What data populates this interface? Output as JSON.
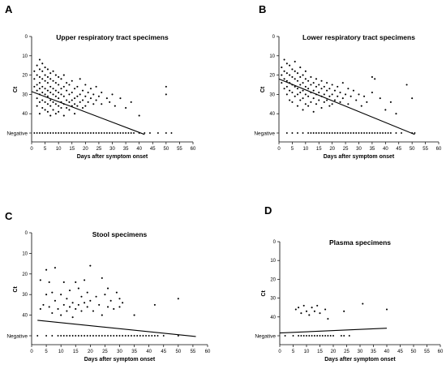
{
  "chart_data": [
    {
      "letter": "A",
      "type": "scatter",
      "title": "Upper respiratory tract specimens",
      "xlabel": "Days after symptom onset",
      "ylabel": "Ct",
      "xlim": [
        0,
        60
      ],
      "xticks": [
        0,
        5,
        10,
        15,
        20,
        25,
        30,
        35,
        40,
        45,
        50,
        55,
        60
      ],
      "yticks": [
        0,
        10,
        20,
        30,
        40
      ],
      "ycategory": "Negative",
      "trend": [
        [
          0,
          28.5
        ],
        [
          42,
          53
        ]
      ],
      "negatives": [
        1,
        2,
        3,
        4,
        5,
        6,
        7,
        8,
        9,
        10,
        11,
        12,
        13,
        14,
        15,
        16,
        17,
        18,
        19,
        20,
        21,
        22,
        23,
        24,
        25,
        26,
        27,
        28,
        29,
        30,
        31,
        32,
        33,
        34,
        35,
        36,
        37,
        38,
        40,
        42,
        44,
        47,
        50,
        52
      ],
      "points": [
        [
          1,
          18
        ],
        [
          1,
          22
        ],
        [
          1,
          26
        ],
        [
          2,
          15
        ],
        [
          2,
          20
        ],
        [
          2,
          25
        ],
        [
          2,
          28
        ],
        [
          2,
          32
        ],
        [
          2,
          36
        ],
        [
          3,
          12
        ],
        [
          3,
          17
        ],
        [
          3,
          21
        ],
        [
          3,
          24
        ],
        [
          3,
          27
        ],
        [
          3,
          30
        ],
        [
          3,
          34
        ],
        [
          3,
          40
        ],
        [
          4,
          14
        ],
        [
          4,
          18
        ],
        [
          4,
          22
        ],
        [
          4,
          26
        ],
        [
          4,
          29
        ],
        [
          4,
          33
        ],
        [
          4,
          37
        ],
        [
          5,
          16
        ],
        [
          5,
          20
        ],
        [
          5,
          23
        ],
        [
          5,
          27
        ],
        [
          5,
          30
        ],
        [
          5,
          34
        ],
        [
          5,
          38
        ],
        [
          6,
          17
        ],
        [
          6,
          21
        ],
        [
          6,
          24
        ],
        [
          6,
          28
        ],
        [
          6,
          31
        ],
        [
          6,
          35
        ],
        [
          6,
          39
        ],
        [
          7,
          19
        ],
        [
          7,
          22
        ],
        [
          7,
          26
        ],
        [
          7,
          29
        ],
        [
          7,
          33
        ],
        [
          7,
          36
        ],
        [
          7,
          41
        ],
        [
          8,
          18
        ],
        [
          8,
          23
        ],
        [
          8,
          27
        ],
        [
          8,
          30
        ],
        [
          8,
          34
        ],
        [
          8,
          38
        ],
        [
          9,
          20
        ],
        [
          9,
          24
        ],
        [
          9,
          28
        ],
        [
          9,
          31
        ],
        [
          9,
          35
        ],
        [
          9,
          40
        ],
        [
          10,
          21
        ],
        [
          10,
          25
        ],
        [
          10,
          29
        ],
        [
          10,
          32
        ],
        [
          10,
          36
        ],
        [
          10,
          39
        ],
        [
          11,
          22
        ],
        [
          11,
          27
        ],
        [
          11,
          30
        ],
        [
          11,
          34
        ],
        [
          11,
          37
        ],
        [
          12,
          20
        ],
        [
          12,
          26
        ],
        [
          12,
          31
        ],
        [
          12,
          35
        ],
        [
          12,
          41
        ],
        [
          13,
          24
        ],
        [
          13,
          28
        ],
        [
          13,
          33
        ],
        [
          13,
          37
        ],
        [
          14,
          25
        ],
        [
          14,
          30
        ],
        [
          14,
          34
        ],
        [
          14,
          38
        ],
        [
          15,
          23
        ],
        [
          15,
          29
        ],
        [
          15,
          33
        ],
        [
          15,
          36
        ],
        [
          16,
          27
        ],
        [
          16,
          32
        ],
        [
          16,
          35
        ],
        [
          16,
          40
        ],
        [
          17,
          26
        ],
        [
          17,
          31
        ],
        [
          17,
          36
        ],
        [
          18,
          22
        ],
        [
          18,
          30
        ],
        [
          18,
          34
        ],
        [
          19,
          28
        ],
        [
          19,
          33
        ],
        [
          19,
          37
        ],
        [
          20,
          25
        ],
        [
          20,
          31
        ],
        [
          20,
          36
        ],
        [
          21,
          29
        ],
        [
          21,
          34
        ],
        [
          22,
          27
        ],
        [
          22,
          32
        ],
        [
          23,
          30
        ],
        [
          23,
          35
        ],
        [
          24,
          26
        ],
        [
          24,
          33
        ],
        [
          25,
          31
        ],
        [
          26,
          29
        ],
        [
          26,
          35
        ],
        [
          28,
          32
        ],
        [
          29,
          34
        ],
        [
          30,
          30
        ],
        [
          31,
          36
        ],
        [
          33,
          32
        ],
        [
          35,
          37
        ],
        [
          37,
          34
        ],
        [
          40,
          41
        ],
        [
          50,
          26
        ],
        [
          50,
          30
        ]
      ]
    },
    {
      "letter": "B",
      "type": "scatter",
      "title": "Lower respiratory tract specimens",
      "xlabel": "Days after symptom onset",
      "ylabel": "Ct",
      "xlim": [
        0,
        60
      ],
      "xticks": [
        0,
        5,
        10,
        15,
        20,
        25,
        30,
        35,
        40,
        45,
        50,
        55,
        60
      ],
      "yticks": [
        0,
        10,
        20,
        30,
        40
      ],
      "ycategory": "Negative",
      "trend": [
        [
          0,
          22
        ],
        [
          51,
          53
        ]
      ],
      "negatives": [
        3,
        5,
        7,
        9,
        11,
        12,
        13,
        14,
        15,
        16,
        17,
        18,
        19,
        20,
        21,
        22,
        23,
        24,
        25,
        26,
        27,
        28,
        29,
        30,
        31,
        32,
        33,
        34,
        35,
        36,
        37,
        38,
        39,
        40,
        41,
        42,
        44,
        46,
        50,
        51
      ],
      "points": [
        [
          1,
          16
        ],
        [
          1,
          20
        ],
        [
          1,
          24
        ],
        [
          2,
          12
        ],
        [
          2,
          18
        ],
        [
          2,
          22
        ],
        [
          2,
          27
        ],
        [
          3,
          14
        ],
        [
          3,
          19
        ],
        [
          3,
          23
        ],
        [
          3,
          26
        ],
        [
          3,
          30
        ],
        [
          4,
          15
        ],
        [
          4,
          20
        ],
        [
          4,
          24
        ],
        [
          4,
          28
        ],
        [
          4,
          33
        ],
        [
          5,
          17
        ],
        [
          5,
          21
        ],
        [
          5,
          25
        ],
        [
          5,
          29
        ],
        [
          5,
          34
        ],
        [
          6,
          13
        ],
        [
          6,
          18
        ],
        [
          6,
          22
        ],
        [
          6,
          26
        ],
        [
          6,
          31
        ],
        [
          7,
          19
        ],
        [
          7,
          23
        ],
        [
          7,
          27
        ],
        [
          7,
          30
        ],
        [
          7,
          36
        ],
        [
          8,
          16
        ],
        [
          8,
          21
        ],
        [
          8,
          25
        ],
        [
          8,
          29
        ],
        [
          8,
          33
        ],
        [
          9,
          20
        ],
        [
          9,
          24
        ],
        [
          9,
          28
        ],
        [
          9,
          32
        ],
        [
          9,
          38
        ],
        [
          10,
          18
        ],
        [
          10,
          22
        ],
        [
          10,
          26
        ],
        [
          10,
          30
        ],
        [
          10,
          35
        ],
        [
          11,
          23
        ],
        [
          11,
          27
        ],
        [
          11,
          31
        ],
        [
          11,
          36
        ],
        [
          12,
          21
        ],
        [
          12,
          25
        ],
        [
          12,
          29
        ],
        [
          12,
          34
        ],
        [
          13,
          24
        ],
        [
          13,
          28
        ],
        [
          13,
          32
        ],
        [
          13,
          39
        ],
        [
          14,
          22
        ],
        [
          14,
          26
        ],
        [
          14,
          30
        ],
        [
          14,
          35
        ],
        [
          15,
          25
        ],
        [
          15,
          29
        ],
        [
          15,
          33
        ],
        [
          16,
          23
        ],
        [
          16,
          27
        ],
        [
          16,
          31
        ],
        [
          16,
          37
        ],
        [
          17,
          26
        ],
        [
          17,
          30
        ],
        [
          17,
          34
        ],
        [
          18,
          24
        ],
        [
          18,
          28
        ],
        [
          18,
          33
        ],
        [
          19,
          27
        ],
        [
          19,
          31
        ],
        [
          19,
          36
        ],
        [
          20,
          25
        ],
        [
          20,
          30
        ],
        [
          20,
          35
        ],
        [
          21,
          28
        ],
        [
          21,
          33
        ],
        [
          22,
          26
        ],
        [
          22,
          31
        ],
        [
          23,
          29
        ],
        [
          23,
          34
        ],
        [
          24,
          24
        ],
        [
          24,
          32
        ],
        [
          25,
          30
        ],
        [
          26,
          27
        ],
        [
          26,
          35
        ],
        [
          27,
          31
        ],
        [
          28,
          28
        ],
        [
          29,
          33
        ],
        [
          30,
          30
        ],
        [
          31,
          36
        ],
        [
          32,
          31
        ],
        [
          33,
          34
        ],
        [
          35,
          21
        ],
        [
          35,
          29
        ],
        [
          36,
          22
        ],
        [
          38,
          32
        ],
        [
          40,
          38
        ],
        [
          42,
          34
        ],
        [
          44,
          40
        ],
        [
          48,
          25
        ],
        [
          50,
          32
        ]
      ]
    },
    {
      "letter": "C",
      "type": "scatter",
      "title": "Stool specimens",
      "xlabel": "Days after symptom onset",
      "ylabel": "Ct",
      "xlim": [
        0,
        60
      ],
      "xticks": [
        0,
        5,
        10,
        15,
        20,
        25,
        30,
        35,
        40,
        45,
        50,
        55,
        60
      ],
      "yticks": [
        0,
        10,
        20,
        30,
        40
      ],
      "ycategory": "Negative",
      "trend": [
        [
          2,
          42.5
        ],
        [
          56,
          51.5
        ]
      ],
      "negatives": [
        2,
        5,
        7,
        9,
        10,
        11,
        12,
        13,
        14,
        15,
        16,
        17,
        18,
        19,
        20,
        21,
        22,
        23,
        24,
        25,
        26,
        27,
        28,
        29,
        30,
        31,
        32,
        33,
        34,
        35,
        36,
        37,
        38,
        39,
        40,
        41,
        42,
        43,
        45,
        50
      ],
      "points": [
        [
          3,
          23
        ],
        [
          3,
          37
        ],
        [
          4,
          35
        ],
        [
          5,
          18
        ],
        [
          5,
          30
        ],
        [
          6,
          24
        ],
        [
          6,
          36
        ],
        [
          7,
          29
        ],
        [
          7,
          39
        ],
        [
          8,
          17
        ],
        [
          8,
          33
        ],
        [
          9,
          37
        ],
        [
          10,
          30
        ],
        [
          10,
          40
        ],
        [
          11,
          24
        ],
        [
          11,
          35
        ],
        [
          12,
          32
        ],
        [
          12,
          38
        ],
        [
          13,
          28
        ],
        [
          13,
          36
        ],
        [
          14,
          34
        ],
        [
          14,
          41
        ],
        [
          15,
          24
        ],
        [
          15,
          37
        ],
        [
          16,
          27
        ],
        [
          16,
          35
        ],
        [
          17,
          31
        ],
        [
          17,
          38
        ],
        [
          18,
          23
        ],
        [
          18,
          34
        ],
        [
          19,
          29
        ],
        [
          19,
          36
        ],
        [
          20,
          16
        ],
        [
          20,
          33
        ],
        [
          21,
          38
        ],
        [
          22,
          31
        ],
        [
          23,
          35
        ],
        [
          24,
          22
        ],
        [
          24,
          40
        ],
        [
          25,
          30
        ],
        [
          26,
          27
        ],
        [
          26,
          36
        ],
        [
          27,
          33
        ],
        [
          28,
          37
        ],
        [
          29,
          29
        ],
        [
          30,
          32
        ],
        [
          30,
          36
        ],
        [
          31,
          34
        ],
        [
          35,
          40
        ],
        [
          42,
          35
        ],
        [
          50,
          32
        ]
      ]
    },
    {
      "letter": "D",
      "type": "scatter",
      "title": "Plasma specimens",
      "xlabel": "Days after symptom onset",
      "ylabel": "Ct",
      "xlim": [
        0,
        60
      ],
      "xticks": [
        0,
        5,
        10,
        15,
        20,
        25,
        30,
        35,
        40,
        45,
        50,
        55,
        60
      ],
      "yticks": [
        0,
        10,
        20,
        30,
        40
      ],
      "ycategory": "Negative",
      "trend": [
        [
          0,
          48.5
        ],
        [
          40,
          46
        ]
      ],
      "negatives": [
        2,
        5,
        7,
        8,
        9,
        10,
        11,
        12,
        13,
        14,
        15,
        16,
        17,
        18,
        19,
        20,
        23,
        24,
        26
      ],
      "points": [
        [
          6,
          36
        ],
        [
          7,
          35
        ],
        [
          8,
          38
        ],
        [
          9,
          34
        ],
        [
          10,
          37
        ],
        [
          11,
          39
        ],
        [
          12,
          35
        ],
        [
          13,
          37
        ],
        [
          14,
          34
        ],
        [
          15,
          38
        ],
        [
          17,
          36
        ],
        [
          18,
          41
        ],
        [
          24,
          37
        ],
        [
          31,
          33
        ],
        [
          40,
          36
        ]
      ]
    }
  ]
}
